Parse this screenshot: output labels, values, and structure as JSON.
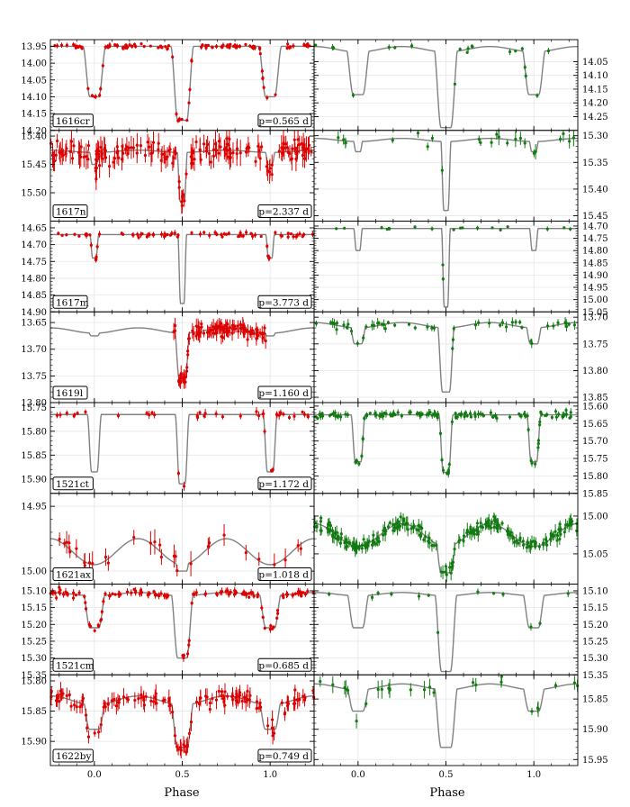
{
  "chart_data": {
    "type": "scatter",
    "xlabel": "Phase",
    "x_range": [
      -0.25,
      1.25
    ],
    "x_ticks": [
      "0.0",
      "0.5",
      "1.0"
    ],
    "x_tick_values": [
      0.0,
      0.5,
      1.0
    ],
    "y_axis_inverted": true,
    "grid": true,
    "colors": {
      "left_points": "#dd0000",
      "right_points": "#117a11",
      "model": "#808080"
    },
    "rows": [
      {
        "star": "1616cr",
        "period": "p=0.565 d",
        "left": {
          "ylim": [
            13.93,
            14.2
          ],
          "yticks": [
            "13.95",
            "14.00",
            "14.05",
            "14.10",
            "14.15",
            "14.20"
          ],
          "ytick_values": [
            13.95,
            14.0,
            14.05,
            14.1,
            14.15,
            14.2
          ]
        },
        "right": {
          "ylim": [
            13.97,
            14.3
          ],
          "yticks": [
            "14.05",
            "14.10",
            "14.15",
            "14.20",
            "14.25"
          ],
          "ytick_values": [
            14.05,
            14.1,
            14.15,
            14.2,
            14.25
          ]
        },
        "model": {
          "base": 13.95,
          "secondary": 14.1,
          "primary": 14.17,
          "amp": 0,
          "width": 0.065
        },
        "right_model": {
          "base": 13.995,
          "secondary": 14.17,
          "primary": 14.29,
          "amp": 0.02,
          "width": 0.07
        },
        "left_n": 120,
        "right_n": 20,
        "left_err": 0.004,
        "right_err": 0.006,
        "primary_gap": false,
        "right_primary_gap": true
      },
      {
        "star": "1617n",
        "period": "p=2.337 d",
        "left": {
          "ylim": [
            15.39,
            15.55
          ],
          "yticks": [
            "15.40",
            "15.45",
            "15.50"
          ],
          "ytick_values": [
            15.4,
            15.45,
            15.5
          ]
        },
        "right": {
          "ylim": [
            15.29,
            15.46
          ],
          "yticks": [
            "15.30",
            "15.35",
            "15.40",
            "15.45"
          ],
          "ytick_values": [
            15.3,
            15.35,
            15.4,
            15.45
          ]
        },
        "model": {
          "base": 15.425,
          "secondary": 15.45,
          "primary": 15.515,
          "amp": 0.004,
          "width": 0.03
        },
        "right_model": {
          "base": 15.305,
          "secondary": 15.33,
          "primary": 15.44,
          "amp": 0.006,
          "width": 0.03
        },
        "left_n": 180,
        "right_n": 24,
        "left_err": 0.012,
        "right_err": 0.008,
        "primary_gap": false,
        "right_primary_gap": false
      },
      {
        "star": "1617m",
        "period": "p=3.773 d",
        "left": {
          "ylim": [
            14.63,
            14.9
          ],
          "yticks": [
            "14.65",
            "14.70",
            "14.75",
            "14.80",
            "14.85",
            "14.90"
          ],
          "ytick_values": [
            14.65,
            14.7,
            14.75,
            14.8,
            14.85,
            14.9
          ]
        },
        "right": {
          "ylim": [
            14.68,
            15.05
          ],
          "yticks": [
            "14.70",
            "14.75",
            "14.80",
            "14.85",
            "14.90",
            "14.95",
            "15.00",
            "15.05"
          ],
          "ytick_values": [
            14.7,
            14.75,
            14.8,
            14.85,
            14.9,
            14.95,
            15.0,
            15.05
          ]
        },
        "model": {
          "base": 14.67,
          "secondary": 14.74,
          "primary": 14.875,
          "amp": 0,
          "width": 0.025
        },
        "right_model": {
          "base": 14.71,
          "secondary": 14.8,
          "primary": 15.03,
          "amp": 0,
          "width": 0.025
        },
        "left_n": 80,
        "right_n": 20,
        "left_err": 0.005,
        "right_err": 0.005,
        "primary_gap": true,
        "right_primary_gap": true
      },
      {
        "star": "1619l",
        "period": "p=1.160 d",
        "left": {
          "ylim": [
            13.63,
            13.8
          ],
          "yticks": [
            "13.65",
            "13.70",
            "13.75",
            "13.80"
          ],
          "ytick_values": [
            13.65,
            13.7,
            13.75,
            13.8
          ]
        },
        "right": {
          "ylim": [
            13.69,
            13.86
          ],
          "yticks": [
            "13.70",
            "13.75",
            "13.80",
            "13.85"
          ],
          "ytick_values": [
            13.7,
            13.75,
            13.8,
            13.85
          ]
        },
        "model": {
          "base": 13.66,
          "secondary": 13.675,
          "primary": 13.755,
          "amp": 0.01,
          "width": 0.045
        },
        "right_model": {
          "base": 13.71,
          "secondary": 13.75,
          "primary": 13.84,
          "amp": 0.01,
          "width": 0.05
        },
        "left_n": 110,
        "right_n": 50,
        "left_err": 0.008,
        "right_err": 0.005,
        "primary_gap": false,
        "right_primary_gap": false,
        "left_phase_window": [
          0.45,
          0.98
        ]
      },
      {
        "star": "1521ct",
        "period": "p=1.172 d",
        "left": {
          "ylim": [
            15.74,
            15.93
          ],
          "yticks": [
            "15.75",
            "15.80",
            "15.85",
            "15.90"
          ],
          "ytick_values": [
            15.75,
            15.8,
            15.85,
            15.9
          ]
        },
        "right": {
          "ylim": [
            15.59,
            15.85
          ],
          "yticks": [
            "15.60",
            "15.65",
            "15.70",
            "15.75",
            "15.80",
            "15.85"
          ],
          "ytick_values": [
            15.6,
            15.65,
            15.7,
            15.75,
            15.8,
            15.85
          ]
        },
        "model": {
          "base": 15.765,
          "secondary": 15.885,
          "primary": 15.91,
          "amp": 0,
          "width": 0.04
        },
        "right_model": {
          "base": 15.625,
          "secondary": 15.76,
          "primary": 15.79,
          "amp": 0,
          "width": 0.04
        },
        "left_n": 40,
        "right_n": 140,
        "left_err": 0.005,
        "right_err": 0.006,
        "primary_gap": false,
        "right_primary_gap": false
      },
      {
        "star": "1621ax",
        "period": "p=1.018 d",
        "left": {
          "ylim": [
            14.94,
            15.01
          ],
          "yticks": [
            "14.95",
            "15.00"
          ],
          "ytick_values": [
            14.95,
            15.0
          ]
        },
        "right": {
          "ylim": [
            14.97,
            15.09
          ],
          "yticks": [
            "15.00",
            "15.05"
          ],
          "ytick_values": [
            15.0,
            15.05
          ]
        },
        "model": {
          "base": 14.975,
          "secondary": 14.99,
          "primary": 15.0,
          "amp": 0.02,
          "width": 0.06
        },
        "right_model": {
          "base": 15.01,
          "secondary": 15.03,
          "primary": 15.075,
          "amp": 0.03,
          "width": 0.07
        },
        "left_n": 30,
        "right_n": 220,
        "left_err": 0.005,
        "right_err": 0.005,
        "primary_gap": false,
        "right_primary_gap": false
      },
      {
        "star": "1521cm",
        "period": "p=0.685 d",
        "left": {
          "ylim": [
            15.08,
            15.35
          ],
          "yticks": [
            "15.10",
            "15.15",
            "15.20",
            "15.25",
            "15.30",
            "15.35"
          ],
          "ytick_values": [
            15.1,
            15.15,
            15.2,
            15.25,
            15.3,
            15.35
          ]
        },
        "right": {
          "ylim": [
            15.08,
            15.35
          ],
          "yticks": [
            "15.10",
            "15.15",
            "15.20",
            "15.25",
            "15.30",
            "15.35"
          ],
          "ytick_values": [
            15.1,
            15.15,
            15.2,
            15.25,
            15.3,
            15.35
          ]
        },
        "model": {
          "base": 15.105,
          "secondary": 15.21,
          "primary": 15.3,
          "amp": 0.01,
          "width": 0.065
        },
        "right_model": {
          "base": 15.105,
          "secondary": 15.21,
          "primary": 15.34,
          "amp": 0.01,
          "width": 0.065
        },
        "left_n": 130,
        "right_n": 14,
        "left_err": 0.006,
        "right_err": 0.006,
        "primary_gap": false,
        "right_primary_gap": true
      },
      {
        "star": "1622by",
        "period": "p=0.749 d",
        "left": {
          "ylim": [
            15.79,
            15.94
          ],
          "yticks": [
            "15.80",
            "15.85",
            "15.90"
          ],
          "ytick_values": [
            15.8,
            15.85,
            15.9
          ]
        },
        "right": {
          "ylim": [
            15.81,
            15.96
          ],
          "yticks": [
            "15.85",
            "15.90",
            "15.95"
          ],
          "ytick_values": [
            15.85,
            15.9,
            15.95
          ]
        },
        "model": {
          "base": 15.825,
          "secondary": 15.88,
          "primary": 15.91,
          "amp": 0.015,
          "width": 0.07
        },
        "right_model": {
          "base": 15.825,
          "secondary": 15.87,
          "primary": 15.93,
          "amp": 0.01,
          "width": 0.07
        },
        "left_n": 140,
        "right_n": 26,
        "left_err": 0.008,
        "right_err": 0.008,
        "primary_gap": false,
        "right_primary_gap": false
      }
    ]
  }
}
